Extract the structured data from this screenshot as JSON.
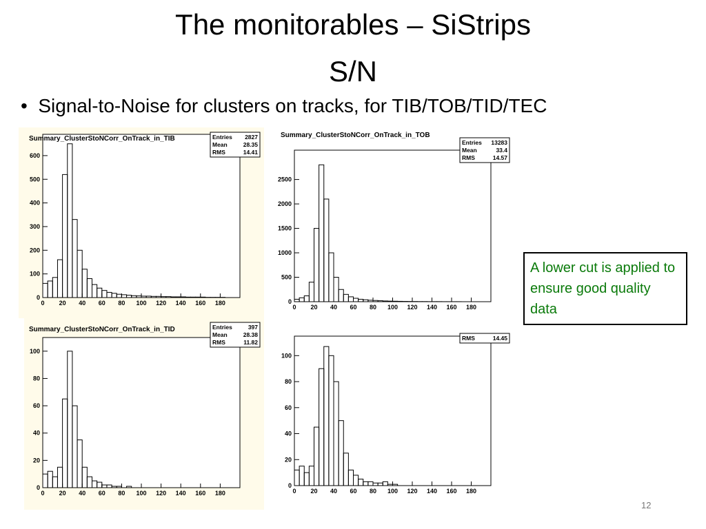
{
  "title": "The monitorables – SiStrips",
  "subtitle": "S/N",
  "bullet": "Signal-to-Noise for clusters on tracks, for TIB/TOB/TID/TEC",
  "note": "A lower cut is applied to ensure good quality data",
  "page_number": "12",
  "chart_data": [
    {
      "type": "histogram",
      "title": "Summary_ClusterStoNCorr_OnTrack_in_TIB",
      "stats": [
        {
          "label": "Entries",
          "value": 2827
        },
        {
          "label": "Mean",
          "value": 28.35
        },
        {
          "label": "RMS",
          "value": 14.41
        }
      ],
      "bins": [
        0,
        5,
        10,
        15,
        20,
        25,
        30,
        35,
        40,
        45,
        50,
        55,
        60,
        65,
        70,
        75,
        80,
        85,
        90,
        95,
        100,
        105,
        110,
        115,
        120,
        125,
        130,
        135,
        140,
        145,
        150,
        155,
        160,
        165,
        170,
        175,
        180,
        185,
        190,
        195,
        200
      ],
      "values": [
        60,
        70,
        85,
        160,
        520,
        650,
        330,
        200,
        120,
        80,
        55,
        40,
        30,
        22,
        18,
        14,
        12,
        10,
        8,
        7,
        6,
        6,
        5,
        5,
        4,
        4,
        3,
        3,
        3,
        2,
        2,
        2,
        2,
        1,
        1,
        1,
        1,
        0,
        0,
        0
      ],
      "xlim": [
        0,
        200
      ],
      "ylim": [
        0,
        690
      ],
      "xticks": [
        0,
        20,
        40,
        60,
        80,
        100,
        120,
        140,
        160,
        180
      ],
      "yticks": [
        0,
        100,
        200,
        300,
        400,
        500,
        600
      ],
      "color": "#000000"
    },
    {
      "type": "histogram",
      "title": "Summary_ClusterStoNCorr_OnTrack_in_TOB",
      "stats": [
        {
          "label": "Entries",
          "value": 13283
        },
        {
          "label": "Mean",
          "value": 33.4
        },
        {
          "label": "RMS",
          "value": 14.57
        }
      ],
      "bins": [
        0,
        5,
        10,
        15,
        20,
        25,
        30,
        35,
        40,
        45,
        50,
        55,
        60,
        65,
        70,
        75,
        80,
        85,
        90,
        95,
        100,
        105,
        110,
        115,
        120,
        125,
        130,
        135,
        140,
        145,
        150,
        155,
        160,
        165,
        170,
        175,
        180,
        185,
        190,
        195,
        200
      ],
      "values": [
        50,
        80,
        120,
        400,
        1500,
        2800,
        2100,
        1000,
        500,
        250,
        150,
        100,
        70,
        50,
        40,
        30,
        25,
        20,
        15,
        12,
        10,
        8,
        6,
        5,
        4,
        3,
        3,
        2,
        2,
        2,
        1,
        1,
        1,
        1,
        0,
        0,
        0,
        0,
        0,
        0
      ],
      "xlim": [
        0,
        200
      ],
      "ylim": [
        0,
        3100
      ],
      "xticks": [
        0,
        20,
        40,
        60,
        80,
        100,
        120,
        140,
        160,
        180
      ],
      "yticks": [
        0,
        500,
        1000,
        1500,
        2000,
        2500
      ],
      "color": "#000000"
    },
    {
      "type": "histogram",
      "title": "Summary_ClusterStoNCorr_OnTrack_in_TID",
      "stats": [
        {
          "label": "Entries",
          "value": 397
        },
        {
          "label": "Mean",
          "value": 28.38
        },
        {
          "label": "RMS",
          "value": 11.82
        }
      ],
      "bins": [
        0,
        5,
        10,
        15,
        20,
        25,
        30,
        35,
        40,
        45,
        50,
        55,
        60,
        65,
        70,
        75,
        80,
        85,
        90,
        95,
        100,
        105,
        110,
        115,
        120,
        125,
        130,
        135,
        140,
        145,
        150,
        155,
        160,
        165,
        170,
        175,
        180,
        185,
        190,
        195,
        200
      ],
      "values": [
        10,
        12,
        8,
        15,
        65,
        100,
        60,
        35,
        15,
        8,
        5,
        4,
        2,
        2,
        1,
        1,
        0,
        1,
        0,
        0,
        0,
        0,
        0,
        0,
        0,
        0,
        0,
        0,
        0,
        0,
        0,
        0,
        0,
        0,
        0,
        0,
        0,
        0,
        0,
        0
      ],
      "xlim": [
        0,
        200
      ],
      "ylim": [
        0,
        110
      ],
      "xticks": [
        0,
        20,
        40,
        60,
        80,
        100,
        120,
        140,
        160,
        180
      ],
      "yticks": [
        0,
        20,
        40,
        60,
        80,
        100
      ],
      "color": "#000000"
    },
    {
      "type": "histogram",
      "stats": [
        {
          "label": "RMS",
          "value": 14.45
        }
      ],
      "bins": [
        0,
        5,
        10,
        15,
        20,
        25,
        30,
        35,
        40,
        45,
        50,
        55,
        60,
        65,
        70,
        75,
        80,
        85,
        90,
        95,
        100,
        105,
        110,
        115,
        120,
        125,
        130,
        135,
        140,
        145,
        150,
        155,
        160,
        165,
        170,
        175,
        180,
        185,
        190,
        195,
        200
      ],
      "values": [
        12,
        15,
        10,
        15,
        45,
        90,
        107,
        100,
        80,
        50,
        25,
        12,
        8,
        5,
        3,
        3,
        2,
        2,
        3,
        1,
        1,
        0,
        0,
        0,
        0,
        0,
        0,
        0,
        0,
        0,
        0,
        0,
        0,
        0,
        0,
        0,
        0,
        0,
        0,
        0
      ],
      "xlim": [
        0,
        200
      ],
      "ylim": [
        0,
        115
      ],
      "xticks": [
        0,
        20,
        40,
        60,
        80,
        100,
        120,
        140,
        160,
        180
      ],
      "yticks": [
        0,
        20,
        40,
        60,
        80,
        100
      ],
      "color": "#000000"
    }
  ]
}
